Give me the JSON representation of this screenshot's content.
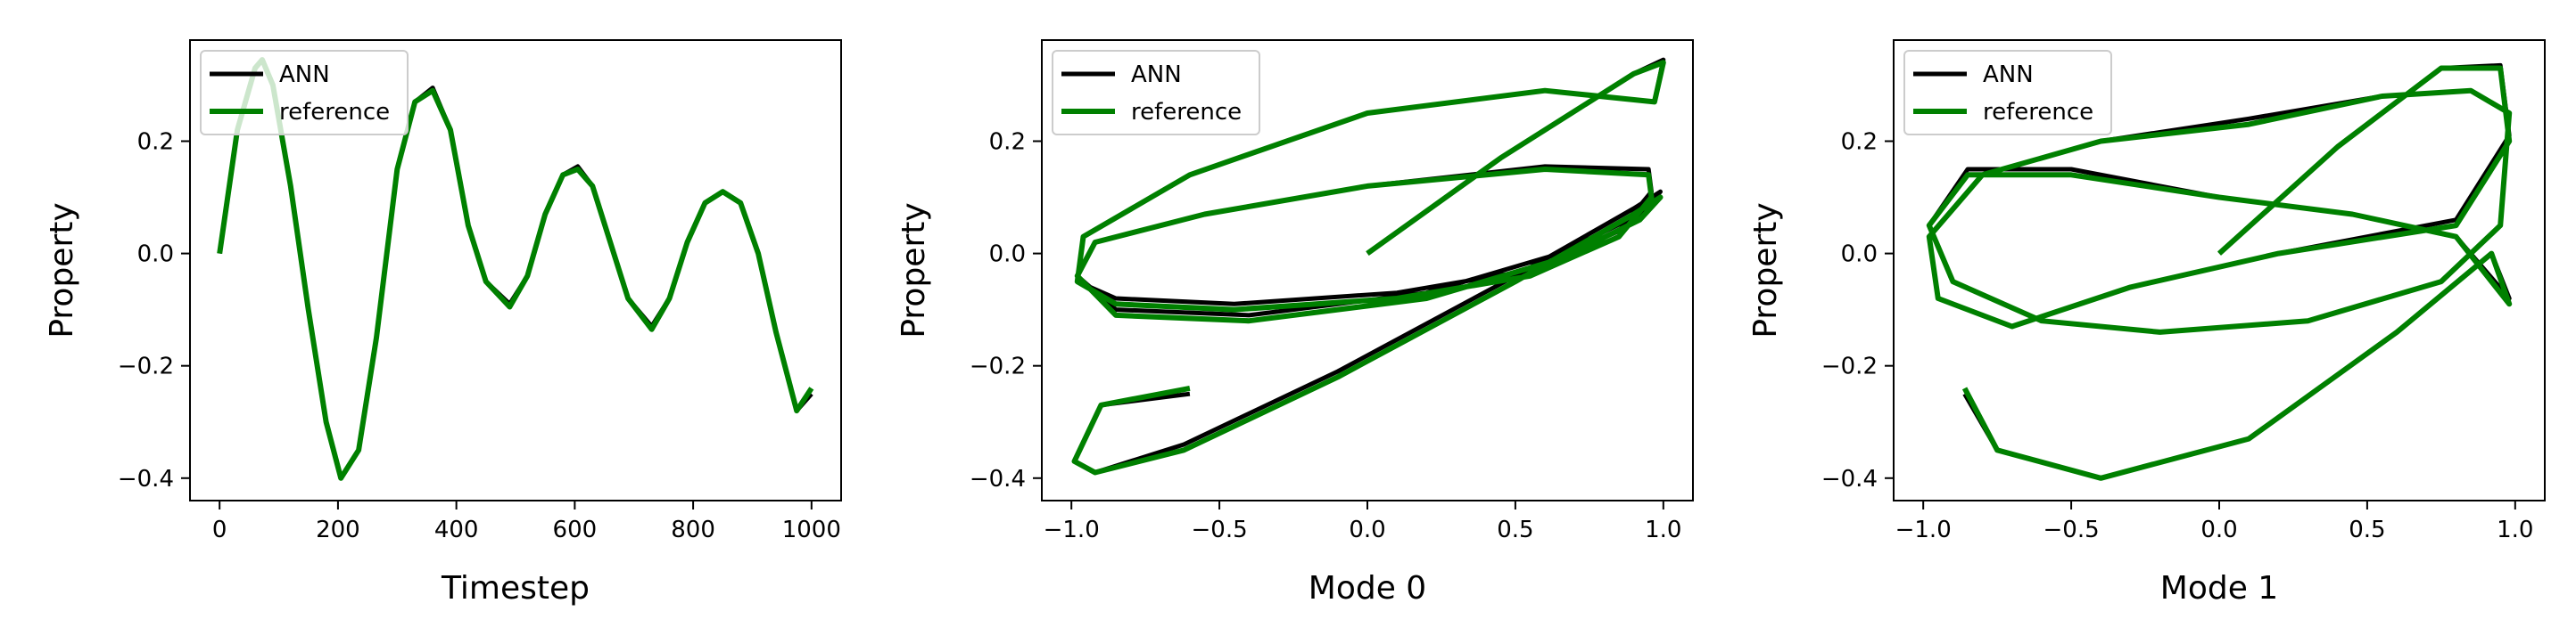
{
  "colors": {
    "ann": "#000000",
    "reference": "#008000"
  },
  "chart_data": [
    {
      "type": "line",
      "title": "",
      "xlabel": "Timestep",
      "ylabel": "Property",
      "xlim": [
        -50,
        1050
      ],
      "ylim": [
        -0.44,
        0.38
      ],
      "xticks": [
        0,
        200,
        400,
        600,
        800,
        1000
      ],
      "xtick_labels": [
        "0",
        "200",
        "400",
        "600",
        "800",
        "1000"
      ],
      "yticks": [
        -0.4,
        -0.2,
        0.0,
        0.2
      ],
      "ytick_labels": [
        "−0.4",
        "−0.2",
        "0.0",
        "0.2"
      ],
      "legend": {
        "placement": "top-left",
        "entries": [
          "ANN",
          "reference"
        ]
      },
      "series": [
        {
          "name": "ANN",
          "color": "#000000"
        },
        {
          "name": "reference",
          "color": "#008000"
        }
      ],
      "x": [
        0,
        30,
        60,
        72,
        90,
        120,
        150,
        180,
        205,
        235,
        265,
        300,
        330,
        360,
        390,
        420,
        450,
        490,
        520,
        550,
        580,
        605,
        630,
        660,
        690,
        730,
        760,
        790,
        820,
        850,
        880,
        910,
        940,
        975,
        1000
      ],
      "y": [
        0.0,
        0.22,
        0.33,
        0.345,
        0.3,
        0.12,
        -0.1,
        -0.3,
        -0.4,
        -0.35,
        -0.15,
        0.15,
        0.27,
        0.29,
        0.22,
        0.05,
        -0.05,
        -0.095,
        -0.04,
        0.07,
        0.14,
        0.15,
        0.12,
        0.02,
        -0.08,
        -0.135,
        -0.08,
        0.02,
        0.09,
        0.11,
        0.09,
        0.0,
        -0.14,
        -0.28,
        -0.24
      ],
      "y_ann": [
        0.0,
        0.22,
        0.33,
        0.345,
        0.3,
        0.12,
        -0.1,
        -0.3,
        -0.4,
        -0.35,
        -0.15,
        0.15,
        0.27,
        0.295,
        0.22,
        0.05,
        -0.05,
        -0.09,
        -0.04,
        0.07,
        0.14,
        0.155,
        0.12,
        0.02,
        -0.08,
        -0.13,
        -0.08,
        0.02,
        0.09,
        0.11,
        0.09,
        0.0,
        -0.14,
        -0.28,
        -0.25
      ]
    },
    {
      "type": "line",
      "title": "",
      "xlabel": "Mode 0",
      "ylabel": "Property",
      "xlim": [
        -1.1,
        1.1
      ],
      "ylim": [
        -0.44,
        0.38
      ],
      "xticks": [
        -1.0,
        -0.5,
        0.0,
        0.5,
        1.0
      ],
      "xtick_labels": [
        "−1.0",
        "−0.5",
        "0.0",
        "0.5",
        "1.0"
      ],
      "yticks": [
        -0.4,
        -0.2,
        0.0,
        0.2
      ],
      "ytick_labels": [
        "−0.4",
        "−0.2",
        "0.0",
        "0.2"
      ],
      "legend": {
        "placement": "top-left",
        "entries": [
          "ANN",
          "reference"
        ]
      },
      "series": [
        {
          "name": "ANN",
          "color": "#000000"
        },
        {
          "name": "reference",
          "color": "#008000"
        }
      ],
      "x": [
        0.0,
        0.45,
        0.9,
        1.0,
        0.97,
        0.6,
        0.0,
        -0.6,
        -0.96,
        -0.98,
        -0.85,
        -0.45,
        0.1,
        0.55,
        0.85,
        0.96,
        0.95,
        0.6,
        0.0,
        -0.55,
        -0.92,
        -0.98,
        -0.85,
        -0.4,
        0.2,
        0.65,
        0.92,
        0.99,
        0.9,
        0.5,
        -0.1,
        -0.62,
        -0.92,
        -0.99,
        -0.9,
        -0.6
      ],
      "y": [
        0.0,
        0.17,
        0.32,
        0.34,
        0.27,
        0.29,
        0.25,
        0.14,
        0.03,
        -0.05,
        -0.09,
        -0.1,
        -0.08,
        -0.04,
        0.03,
        0.1,
        0.14,
        0.15,
        0.12,
        0.07,
        0.02,
        -0.04,
        -0.11,
        -0.12,
        -0.08,
        -0.01,
        0.06,
        0.1,
        0.07,
        -0.05,
        -0.22,
        -0.35,
        -0.39,
        -0.37,
        -0.27,
        -0.24
      ],
      "y_ann": [
        0.0,
        0.17,
        0.32,
        0.345,
        0.27,
        0.29,
        0.25,
        0.14,
        0.03,
        -0.05,
        -0.08,
        -0.09,
        -0.07,
        -0.03,
        0.04,
        0.11,
        0.15,
        0.155,
        0.12,
        0.07,
        0.02,
        -0.04,
        -0.1,
        -0.11,
        -0.07,
        0.0,
        0.07,
        0.11,
        0.08,
        -0.04,
        -0.21,
        -0.34,
        -0.39,
        -0.37,
        -0.27,
        -0.25
      ]
    },
    {
      "type": "line",
      "title": "",
      "xlabel": "Mode 1",
      "ylabel": "Property",
      "xlim": [
        -1.1,
        1.1
      ],
      "ylim": [
        -0.44,
        0.38
      ],
      "xticks": [
        -1.0,
        -0.5,
        0.0,
        0.5,
        1.0
      ],
      "xtick_labels": [
        "−1.0",
        "−0.5",
        "0.0",
        "0.5",
        "1.0"
      ],
      "yticks": [
        -0.4,
        -0.2,
        0.0,
        0.2
      ],
      "ytick_labels": [
        "−0.4",
        "−0.2",
        "0.0",
        "0.2"
      ],
      "legend": {
        "placement": "top-left",
        "entries": [
          "ANN",
          "reference"
        ]
      },
      "series": [
        {
          "name": "ANN",
          "color": "#000000"
        },
        {
          "name": "reference",
          "color": "#008000"
        }
      ],
      "x": [
        0.0,
        0.4,
        0.75,
        0.95,
        0.98,
        0.8,
        0.2,
        -0.3,
        -0.7,
        -0.95,
        -0.98,
        -0.8,
        -0.4,
        0.1,
        0.55,
        0.85,
        0.98,
        0.95,
        0.75,
        0.3,
        -0.2,
        -0.6,
        -0.9,
        -0.98,
        -0.85,
        -0.5,
        0.0,
        0.45,
        0.8,
        0.98,
        0.92,
        0.6,
        0.1,
        -0.4,
        -0.75,
        -0.86
      ],
      "y": [
        0.0,
        0.19,
        0.33,
        0.33,
        0.2,
        0.05,
        0.0,
        -0.06,
        -0.13,
        -0.08,
        0.03,
        0.14,
        0.2,
        0.23,
        0.28,
        0.29,
        0.25,
        0.05,
        -0.05,
        -0.12,
        -0.14,
        -0.12,
        -0.05,
        0.05,
        0.14,
        0.14,
        0.1,
        0.07,
        0.03,
        -0.09,
        0.0,
        -0.14,
        -0.33,
        -0.4,
        -0.35,
        -0.24
      ],
      "y_ann": [
        0.0,
        0.19,
        0.33,
        0.335,
        0.21,
        0.06,
        0.0,
        -0.06,
        -0.13,
        -0.08,
        0.03,
        0.14,
        0.2,
        0.24,
        0.28,
        0.29,
        0.25,
        0.05,
        -0.05,
        -0.12,
        -0.14,
        -0.12,
        -0.05,
        0.05,
        0.15,
        0.15,
        0.1,
        0.07,
        0.03,
        -0.08,
        0.0,
        -0.14,
        -0.33,
        -0.4,
        -0.35,
        -0.25
      ]
    }
  ]
}
